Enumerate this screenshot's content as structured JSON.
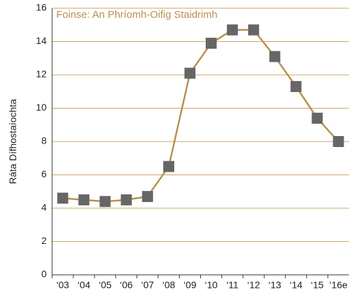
{
  "chart_data": {
    "type": "line",
    "y_label": "Ráta Dífhostaíochta",
    "annotation": "Foinse: An Phríomh-Oifig Staidrimh",
    "categories": [
      "‘03",
      "‘04",
      "‘05",
      "‘06",
      "‘07",
      "‘08",
      "‘09",
      "‘10",
      "‘11",
      "‘12",
      "‘13",
      "‘14",
      "‘15",
      "‘16e"
    ],
    "series": [
      {
        "color": "#b8904f",
        "marker_color": "#666666",
        "values": [
          4.6,
          4.5,
          4.4,
          4.5,
          4.7,
          6.5,
          12.1,
          13.9,
          14.7,
          14.7,
          13.1,
          11.3,
          9.4,
          8.0
        ]
      }
    ],
    "ylim": [
      0,
      16
    ],
    "yticks": [
      0,
      2,
      4,
      6,
      8,
      10,
      12,
      14,
      16
    ],
    "grid": true
  }
}
